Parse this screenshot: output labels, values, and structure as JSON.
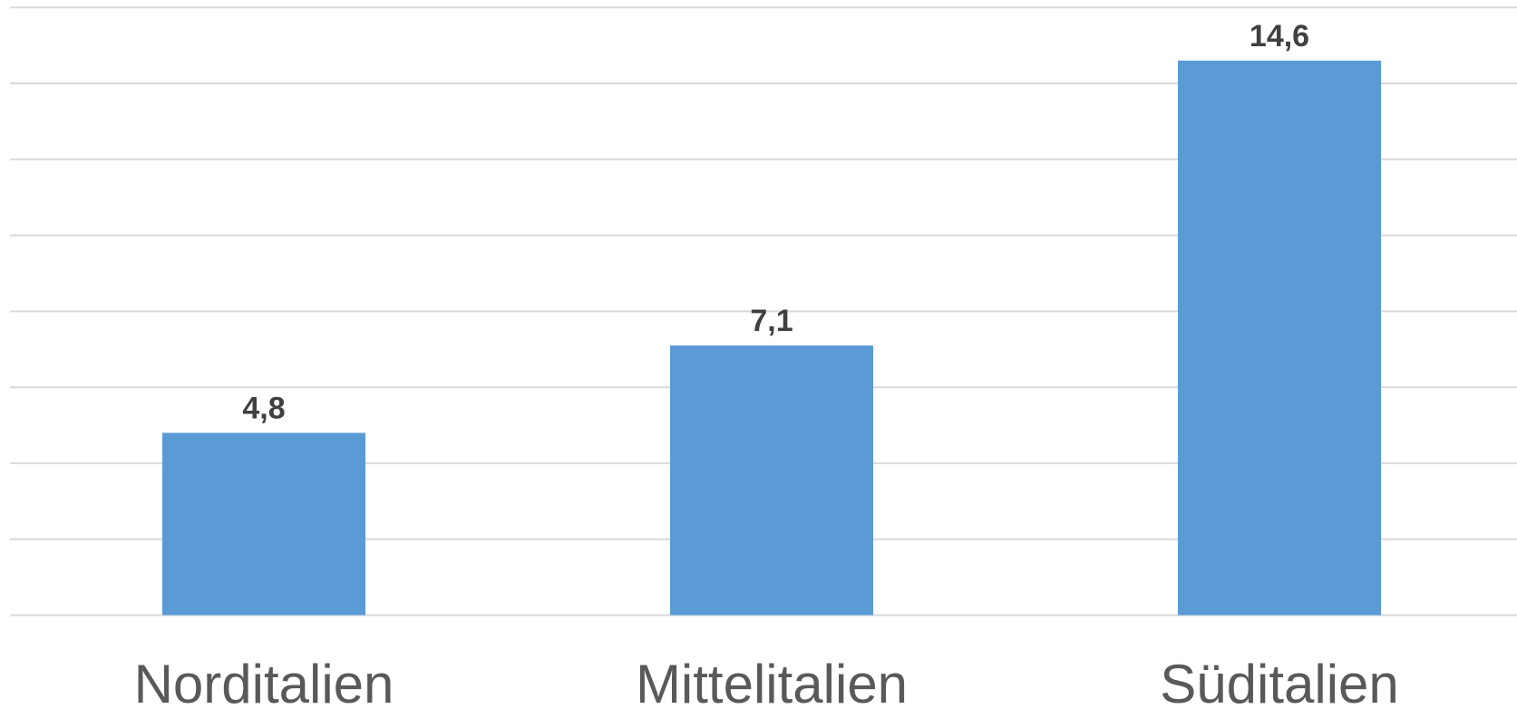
{
  "chart_data": {
    "type": "bar",
    "categories": [
      "Norditalien",
      "Mittelitalien",
      "Süditalien"
    ],
    "values": [
      4.8,
      7.1,
      14.6
    ],
    "value_labels": [
      "4,8",
      "7,1",
      "14,6"
    ],
    "title": "",
    "xlabel": "",
    "ylabel": "",
    "ylim": [
      0,
      16
    ],
    "grid": true,
    "legend": "none",
    "bar_color": "#5b9bd5",
    "gridline_color": "#d9d9d9",
    "label_color": "#404040",
    "category_color": "#595959"
  }
}
